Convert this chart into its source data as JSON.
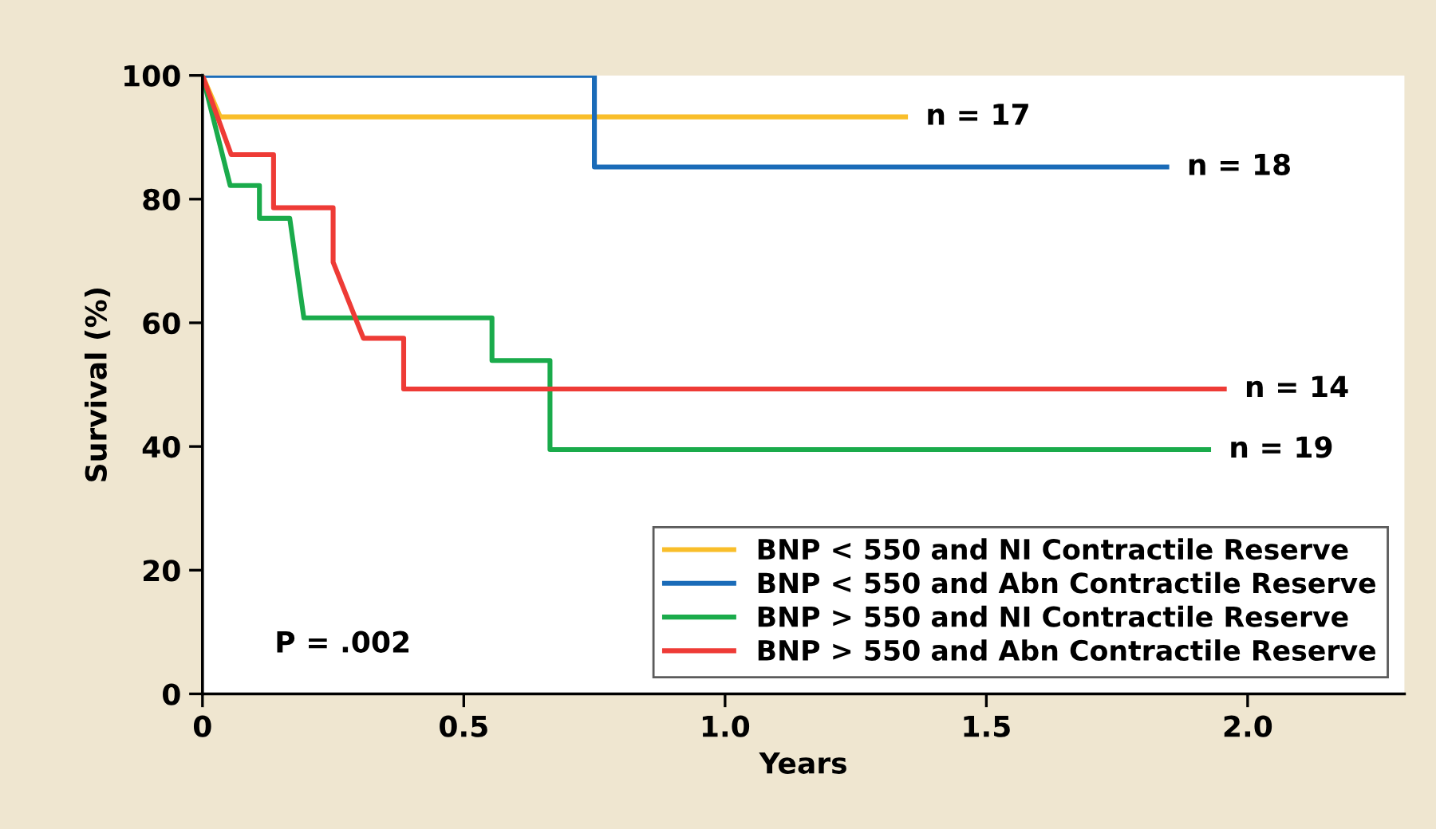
{
  "chart_data": {
    "type": "line",
    "xlabel": "Years",
    "ylabel": "Survival (%)",
    "xlim": [
      0,
      2.3
    ],
    "ylim": [
      0,
      100
    ],
    "xticks": [
      0,
      0.5,
      {
        "value": 1,
        "label": "1.0"
      },
      1.5,
      {
        "value": 2,
        "label": "2.0"
      }
    ],
    "yticks": [
      0,
      20,
      40,
      60,
      80,
      100
    ],
    "grid": false,
    "legend": "bottom right",
    "marker": "none",
    "line_style": "solid",
    "series": [
      {
        "name": "BNP < 550 and NI Contractile Reserve",
        "color": "#f9be2a",
        "x": [
          0,
          0.034,
          1.35
        ],
        "values": [
          100,
          93.3,
          93.3
        ]
      },
      {
        "name": "BNP < 550 and Abn Contractile Reserve",
        "color": "#1a6bb8",
        "x": [
          0,
          0.75,
          0.75,
          1.85
        ],
        "values": [
          100,
          100,
          85.2,
          85.2
        ]
      },
      {
        "name": "BNP > 550 and NI Contractile Reserve",
        "color": "#1aab4b",
        "x": [
          0,
          0.053,
          0.109,
          0.109,
          0.167,
          0.194,
          0.554,
          0.554,
          0.665,
          0.665,
          1.93
        ],
        "values": [
          100,
          82.2,
          82.2,
          76.9,
          76.9,
          60.8,
          60.8,
          53.9,
          53.9,
          39.5,
          39.5
        ]
      },
      {
        "name": "BNP > 550 and Abn Contractile Reserve",
        "color": "#ee3b36",
        "x": [
          0,
          0.055,
          0.136,
          0.136,
          0.25,
          0.25,
          0.308,
          0.385,
          0.385,
          1.96
        ],
        "values": [
          100,
          87.2,
          87.2,
          78.6,
          78.6,
          69.8,
          57.5,
          57.5,
          49.3,
          49.3
        ]
      }
    ],
    "annotations": [
      {
        "text": "n = 17",
        "x": 1.35,
        "y": 93.3
      },
      {
        "text": "n = 18",
        "x": 1.85,
        "y": 85.2
      },
      {
        "text": "n = 14",
        "x": 1.96,
        "y": 49.3
      },
      {
        "text": "n = 19",
        "x": 1.93,
        "y": 39.5
      },
      "P = .002"
    ]
  }
}
